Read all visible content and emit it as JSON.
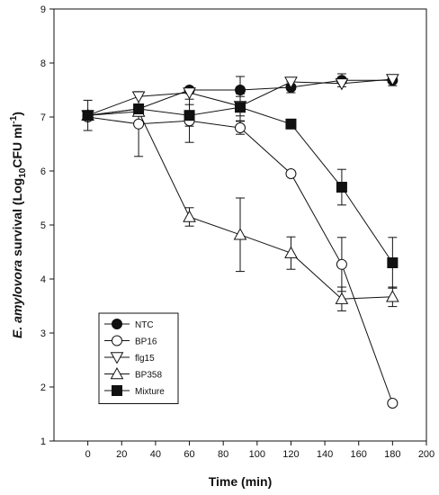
{
  "chart_data": {
    "type": "line",
    "xlabel": "Time (min)",
    "ylabel_parts": {
      "species": "E. amylovora",
      "word": " survival (Log",
      "sub": "10",
      "unit": "CFU ml",
      "sup": "-1",
      "close": ")"
    },
    "xlim": [
      -20,
      200
    ],
    "ylim": [
      1,
      9
    ],
    "xticks": [
      0,
      20,
      40,
      60,
      80,
      100,
      120,
      140,
      160,
      180,
      200
    ],
    "yticks": [
      1,
      2,
      3,
      4,
      5,
      6,
      7,
      8,
      9
    ],
    "grid": false,
    "legend_position": "bottom-left",
    "series": [
      {
        "name": "NTC",
        "marker": "circle",
        "fill": "filled",
        "points": [
          [
            0,
            7.03,
            0
          ],
          [
            30,
            7.15,
            0
          ],
          [
            60,
            7.5,
            0
          ],
          [
            90,
            7.5,
            0.25
          ],
          [
            120,
            7.55,
            0.1
          ],
          [
            150,
            7.68,
            0.12
          ],
          [
            180,
            7.68,
            0.1
          ]
        ]
      },
      {
        "name": "BP16",
        "marker": "circle",
        "fill": "open",
        "points": [
          [
            0,
            7.0,
            0
          ],
          [
            30,
            6.87,
            0.6
          ],
          [
            60,
            6.93,
            0.4
          ],
          [
            90,
            6.8,
            0.12
          ],
          [
            120,
            5.95,
            0
          ],
          [
            150,
            4.27,
            0.5
          ],
          [
            180,
            1.7,
            0
          ]
        ]
      },
      {
        "name": "flg15",
        "marker": "triangle-down",
        "fill": "open",
        "points": [
          [
            0,
            7.03,
            0
          ],
          [
            30,
            7.38,
            0
          ],
          [
            60,
            7.45,
            0
          ],
          [
            90,
            7.2,
            0.18
          ],
          [
            120,
            7.65,
            0
          ],
          [
            150,
            7.62,
            0
          ],
          [
            180,
            7.7,
            0
          ]
        ]
      },
      {
        "name": "BP358",
        "marker": "triangle-up",
        "fill": "open",
        "points": [
          [
            0,
            7.03,
            0.28
          ],
          [
            30,
            7.1,
            0
          ],
          [
            60,
            5.15,
            0.17
          ],
          [
            90,
            4.82,
            0.68
          ],
          [
            120,
            4.48,
            0.3
          ],
          [
            150,
            3.63,
            0.22
          ],
          [
            180,
            3.67,
            0.18
          ]
        ]
      },
      {
        "name": "Mixture",
        "marker": "square",
        "fill": "filled",
        "points": [
          [
            0,
            7.03,
            0
          ],
          [
            30,
            7.15,
            0
          ],
          [
            60,
            7.03,
            0.2
          ],
          [
            90,
            7.18,
            0.25
          ],
          [
            120,
            6.87,
            0
          ],
          [
            150,
            5.7,
            0.33
          ],
          [
            180,
            4.3,
            0.47
          ]
        ]
      }
    ]
  }
}
